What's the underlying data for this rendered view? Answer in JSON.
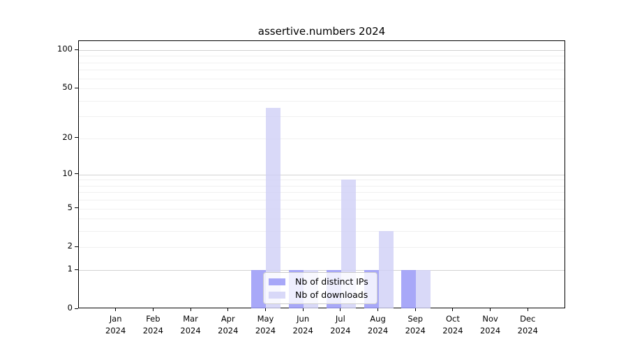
{
  "chart_data": {
    "type": "bar",
    "title": "assertive.numbers 2024",
    "categories": [
      "Jan 2024",
      "Feb 2024",
      "Mar 2024",
      "Apr 2024",
      "May 2024",
      "Jun 2024",
      "Jul 2024",
      "Aug 2024",
      "Sep 2024",
      "Oct 2024",
      "Nov 2024",
      "Dec 2024"
    ],
    "series": [
      {
        "name": "Nb of distinct IPs",
        "color": "#9999f7",
        "opacity": 0.85,
        "values": [
          0,
          0,
          0,
          0,
          1,
          1,
          1,
          1,
          1,
          0,
          0,
          0
        ]
      },
      {
        "name": "Nb of downloads",
        "color": "#d0d0f6",
        "opacity": 0.8,
        "values": [
          0,
          0,
          0,
          0,
          35,
          1,
          9,
          3,
          1,
          0,
          0,
          0
        ]
      }
    ],
    "xlabel": "",
    "ylabel": "",
    "yscale": "log1p",
    "ylim": [
      0,
      118
    ],
    "yticks": [
      0,
      1,
      2,
      5,
      10,
      20,
      50,
      100
    ],
    "major_gridlines": [
      1,
      10,
      100
    ],
    "minor_gridlines": [
      2,
      3,
      4,
      5,
      6,
      7,
      8,
      9,
      20,
      30,
      40,
      50,
      60,
      70,
      80,
      90
    ],
    "grid": true,
    "legend_position": "lower center"
  },
  "colors": {
    "axis": "#000000",
    "major_grid": "#d2d2d2",
    "minor_grid": "#f0f0f0",
    "legend_border": "#cccccc",
    "legend_bg": "rgba(255,255,255,0.8)"
  }
}
